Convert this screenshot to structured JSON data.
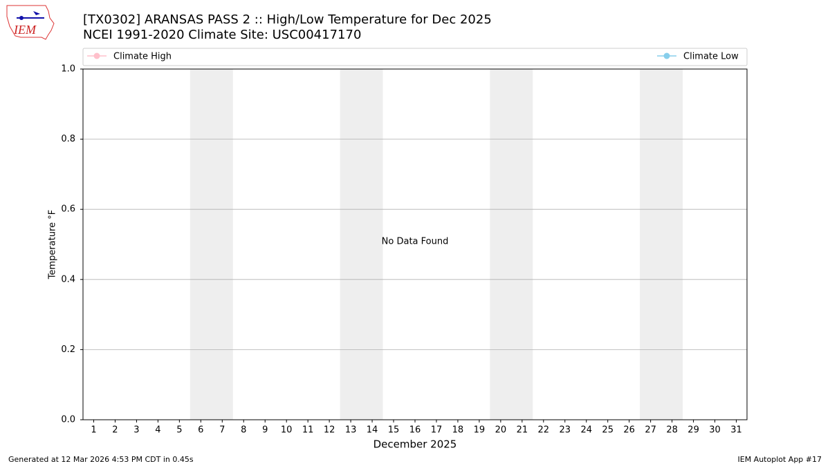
{
  "chart_data": {
    "type": "line",
    "title": "[TX0302] ARANSAS PASS 2 :: High/Low Temperature for Dec 2025",
    "subtitle": "NCEI 1991-2020 Climate Site: USC00417170",
    "x_label": "December 2025",
    "y_label": "Temperature °F",
    "annotation": "No Data Found",
    "xlim": [
      0.5,
      31.5
    ],
    "xticks": [
      1,
      2,
      3,
      4,
      5,
      6,
      7,
      8,
      9,
      10,
      11,
      12,
      13,
      14,
      15,
      16,
      17,
      18,
      19,
      20,
      21,
      22,
      23,
      24,
      25,
      26,
      27,
      28,
      29,
      30,
      31
    ],
    "ylim": [
      0,
      1
    ],
    "yticks": [
      {
        "value": 0,
        "label": "0.0"
      },
      0.2,
      0.4,
      0.6,
      0.8,
      {
        "value": 1,
        "label": "1.0"
      }
    ],
    "grid": true,
    "shaded_spans": [
      [
        5.5,
        7.5
      ],
      [
        12.5,
        14.5
      ],
      [
        19.5,
        21.5
      ],
      [
        26.5,
        28.5
      ]
    ],
    "x": [],
    "series": [
      {
        "name": "Climate High",
        "color": "#ffc0cb",
        "values": []
      },
      {
        "name": "Climate Low",
        "color": "#87ceeb",
        "values": []
      }
    ]
  },
  "logo_text": "IEM",
  "footer_left": "Generated at 12 Mar 2026 4:53 PM CDT in 0.45s",
  "footer_right": "IEM Autoplot App #17"
}
